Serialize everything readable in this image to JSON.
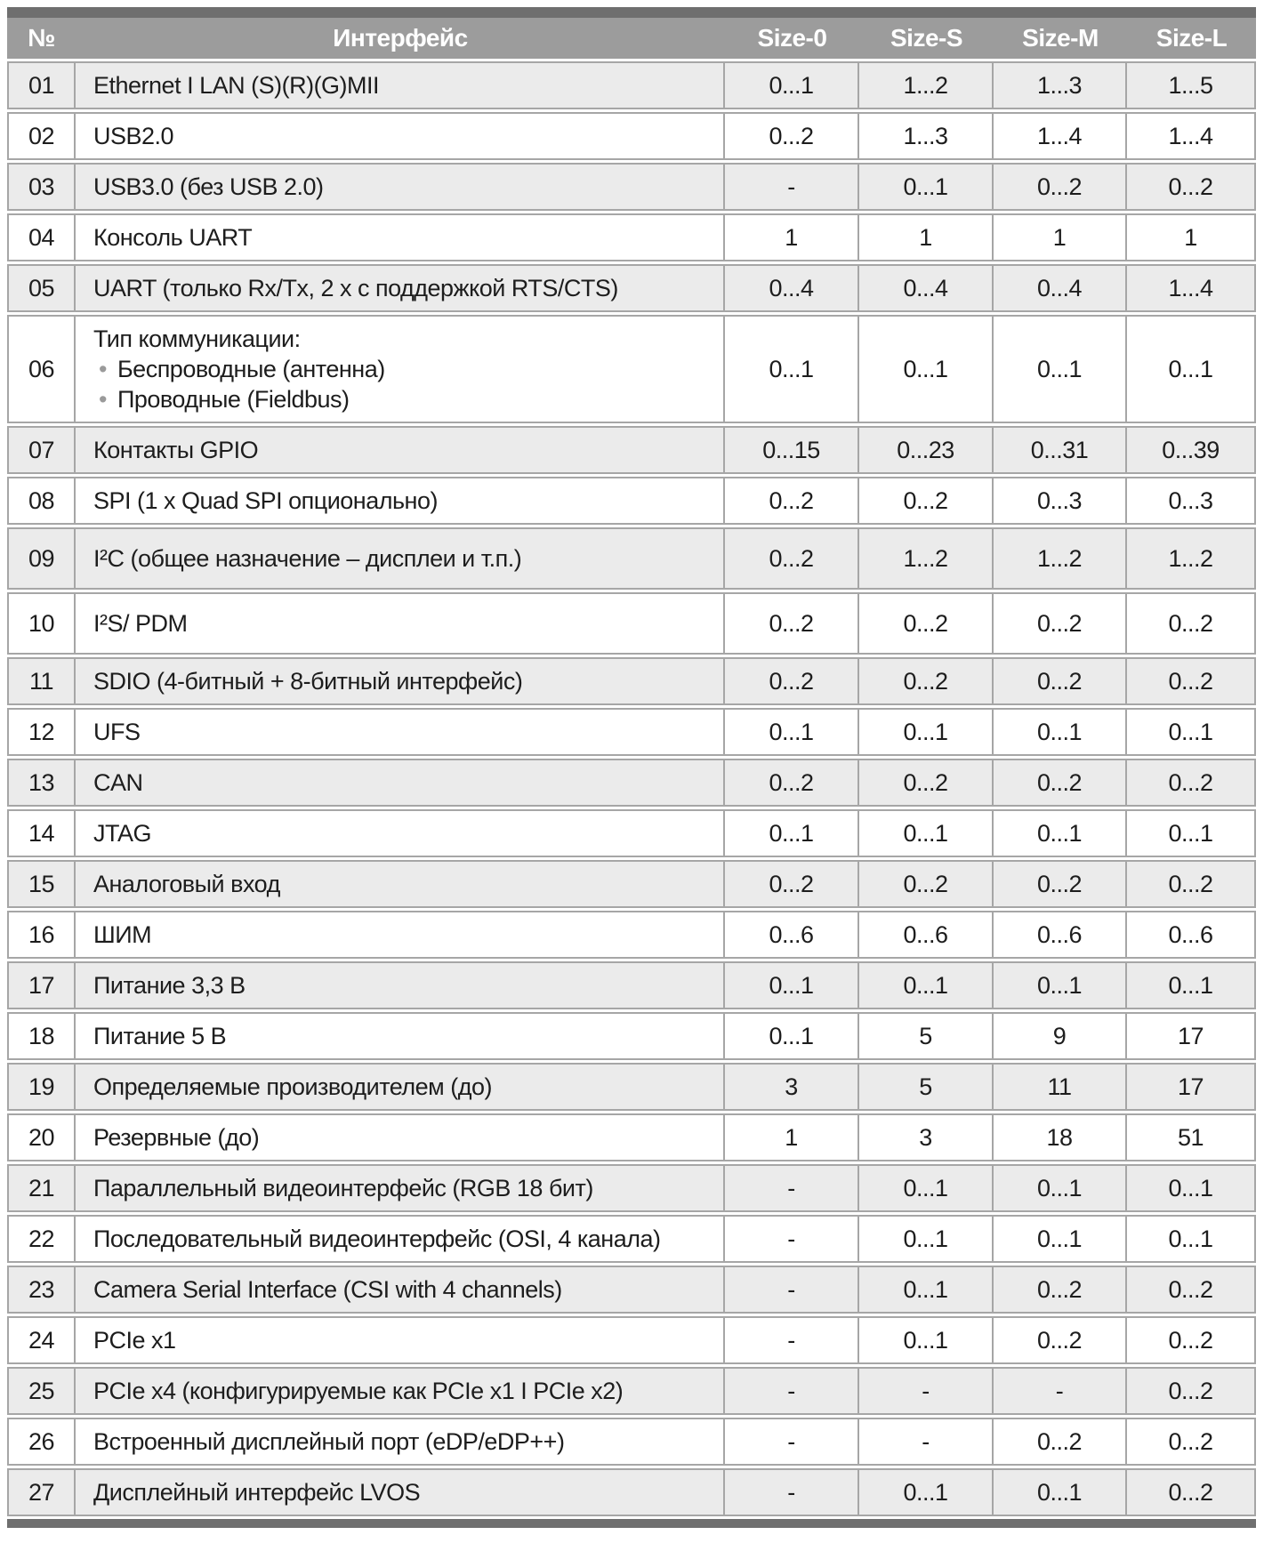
{
  "page": {
    "colors": {
      "top_bottom_strip": "#6f6f6f",
      "header_bg": "#9c9c9c",
      "header_text": "#ffffff",
      "row_alt_bg": "#ebebeb",
      "row_plain_bg": "#ffffff",
      "cell_border": "#a6a6a6",
      "bullet": "#9a9a9a",
      "text": "#1d1d1d"
    }
  },
  "table": {
    "columns": [
      "№",
      "Интерфейс",
      "Size-0",
      "Size-S",
      "Size-M",
      "Size-L"
    ],
    "rows": [
      {
        "num": "01",
        "name": "Ethernet I LAN (S)(R)(G)MII",
        "values": [
          "0...1",
          "1...2",
          "1...3",
          "1...5"
        ]
      },
      {
        "num": "02",
        "name": "USB2.0",
        "values": [
          "0...2",
          "1...3",
          "1...4",
          "1...4"
        ]
      },
      {
        "num": "03",
        "name": "USB3.0 (без USB 2.0)",
        "values": [
          "-",
          "0...1",
          "0...2",
          "0...2"
        ]
      },
      {
        "num": "04",
        "name": "Консоль UART",
        "values": [
          "1",
          "1",
          "1",
          "1"
        ]
      },
      {
        "num": "05",
        "name": "UART (только Rx/Tx, 2 x с поддержкой RTS/CTS)",
        "values": [
          "0...4",
          "0...4",
          "0...4",
          "1...4"
        ]
      },
      {
        "num": "06",
        "name": "Тип коммуникации:",
        "bullets": [
          "Беспроводные (антенна)",
          "Проводные (Fieldbus)"
        ],
        "values": [
          "0...1",
          "0...1",
          "0...1",
          "0...1"
        ]
      },
      {
        "num": "07",
        "name": "Контакты GPIO",
        "values": [
          "0...15",
          "0...23",
          "0...31",
          "0...39"
        ]
      },
      {
        "num": "08",
        "name": "SPI (1 x Quad SPI опционально)",
        "values": [
          "0...2",
          "0...2",
          "0...3",
          "0...3"
        ]
      },
      {
        "num": "09",
        "name": "I²C (общее назначение – дисплеи и т.п.)",
        "values": [
          "0...2",
          "1...2",
          "1...2",
          "1...2"
        ]
      },
      {
        "num": "10",
        "name": "I²S/ PDM",
        "values": [
          "0...2",
          "0...2",
          "0...2",
          "0...2"
        ]
      },
      {
        "num": "11",
        "name": "SDIO (4-битный + 8-битный интерфейс)",
        "values": [
          "0...2",
          "0...2",
          "0...2",
          "0...2"
        ]
      },
      {
        "num": "12",
        "name": "UFS",
        "values": [
          "0...1",
          "0...1",
          "0...1",
          "0...1"
        ]
      },
      {
        "num": "13",
        "name": "CAN",
        "values": [
          "0...2",
          "0...2",
          "0...2",
          "0...2"
        ]
      },
      {
        "num": "14",
        "name": "JTAG",
        "values": [
          "0...1",
          "0...1",
          "0...1",
          "0...1"
        ]
      },
      {
        "num": "15",
        "name": "Аналоговый вход",
        "values": [
          "0...2",
          "0...2",
          "0...2",
          "0...2"
        ]
      },
      {
        "num": "16",
        "name": "ШИМ",
        "values": [
          "0...6",
          "0...6",
          "0...6",
          "0...6"
        ]
      },
      {
        "num": "17",
        "name": "Питание 3,3 В",
        "values": [
          "0...1",
          "0...1",
          "0...1",
          "0...1"
        ]
      },
      {
        "num": "18",
        "name": "Питание 5 В",
        "values": [
          "0...1",
          "5",
          "9",
          "17"
        ]
      },
      {
        "num": "19",
        "name": "Определяемые производителем (до)",
        "values": [
          "3",
          "5",
          "11",
          "17"
        ]
      },
      {
        "num": "20",
        "name": "Резервные (до)",
        "values": [
          "1",
          "3",
          "18",
          "51"
        ]
      },
      {
        "num": "21",
        "name": "Параллельный видеоинтерфейс (RGB 18 бит)",
        "values": [
          "-",
          "0...1",
          "0...1",
          "0...1"
        ]
      },
      {
        "num": "22",
        "name": "Последовательный видеоинтерфейс (OSI, 4 канала)",
        "values": [
          "-",
          "0...1",
          "0...1",
          "0...1"
        ]
      },
      {
        "num": "23",
        "name": "Camera Serial Interface (CSI with 4 channels)",
        "values": [
          "-",
          "0...1",
          "0...2",
          "0...2"
        ]
      },
      {
        "num": "24",
        "name": "PCIe x1",
        "values": [
          "-",
          "0...1",
          "0...2",
          "0...2"
        ]
      },
      {
        "num": "25",
        "name": "PCIe x4 (конфигурируемые как PCIe x1 I PCIe x2)",
        "values": [
          "-",
          "-",
          "-",
          "0...2"
        ]
      },
      {
        "num": "26",
        "name": "Встроенный дисплейный порт (eDP/eDP++)",
        "values": [
          "-",
          "-",
          "0...2",
          "0...2"
        ]
      },
      {
        "num": "27",
        "name": "Дисплейный интерфейс LVOS",
        "values": [
          "-",
          "0...1",
          "0...1",
          "0...2"
        ]
      }
    ]
  }
}
